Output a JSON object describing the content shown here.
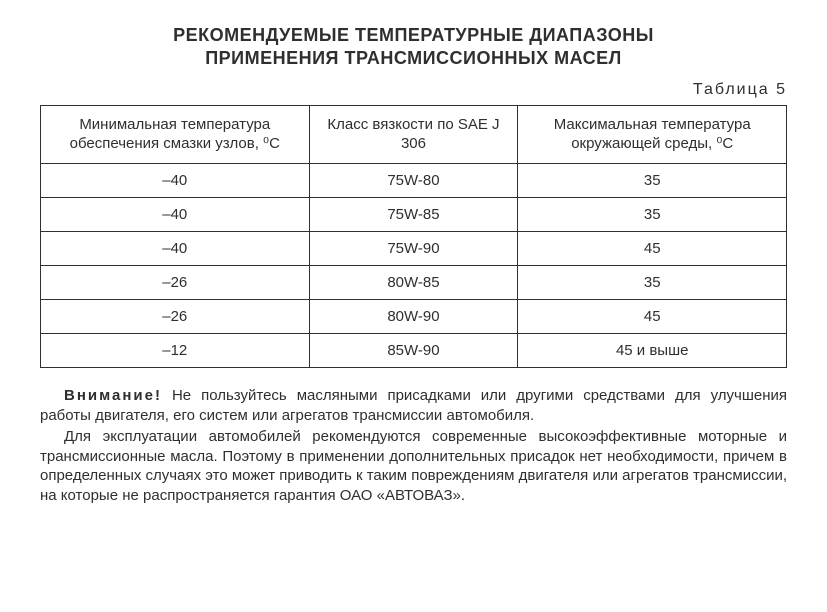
{
  "title_line1": "РЕКОМЕНДУЕМЫЕ ТЕМПЕРАТУРНЫЕ ДИАПАЗОНЫ",
  "title_line2": "ПРИМЕНЕНИЯ ТРАНСМИССИОННЫХ МАСЕЛ",
  "table_label": "Таблица 5",
  "table": {
    "columns": [
      "Минимальная температура обеспечения смазки узлов, ⁰С",
      "Класс вязкости по SAE J 306",
      "Максимальная температура окружающей среды, ⁰С"
    ],
    "col_widths_pct": [
      36,
      28,
      36
    ],
    "rows": [
      [
        "–40",
        "75W-80",
        "35"
      ],
      [
        "–40",
        "75W-85",
        "35"
      ],
      [
        "–40",
        "75W-90",
        "45"
      ],
      [
        "–26",
        "80W-85",
        "35"
      ],
      [
        "–26",
        "80W-90",
        "45"
      ],
      [
        "–12",
        "85W-90",
        "45  и выше"
      ]
    ],
    "border_color": "#2f2f2f",
    "header_fontsize": 15,
    "cell_fontsize": 15
  },
  "paragraphs": {
    "p1_lead": "Внимание!",
    "p1_rest": "  Не пользуйтесь масляными присадками или другими средствами для улучше­ния работы двигателя, его систем или агрегатов трансмиссии автомобиля.",
    "p2": "Для эксплуатации автомобилей рекомендуются современные высокоэффективные моторные и трансмиссионные масла. Поэтому в применении дополнительных присадок нет необходимости, причем в определенных случаях это может приводить к таким повреждениям двигателя или агре­гатов трансмиссии, на которые не распространяется гарантия ОАО «АВТОВАЗ»."
  },
  "colors": {
    "text": "#2f2f2f",
    "background": "#ffffff"
  }
}
